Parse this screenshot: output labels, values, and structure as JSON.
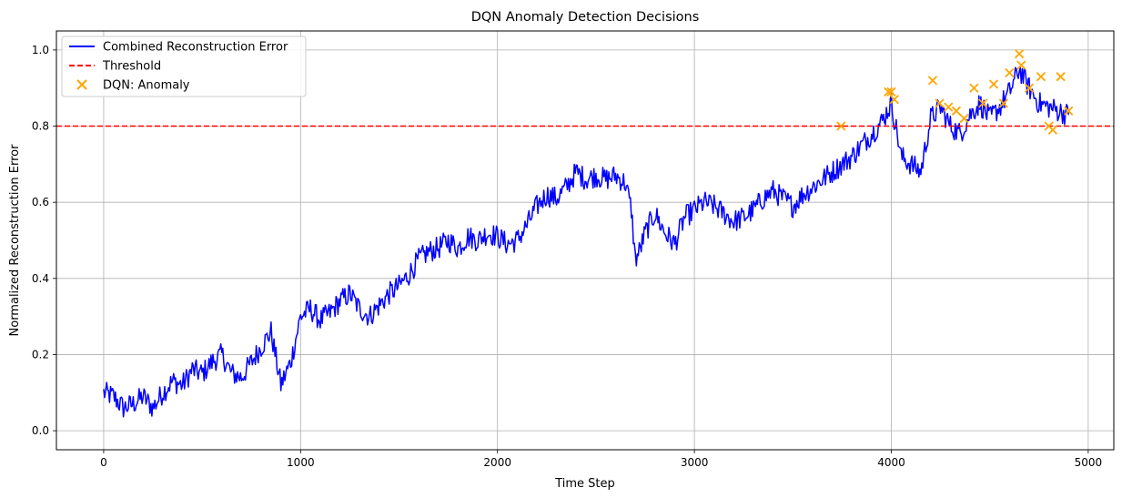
{
  "chart_data": {
    "type": "line",
    "title": "DQN Anomaly Detection Decisions",
    "xlabel": "Time Step",
    "ylabel": "Normalized Reconstruction Error",
    "xlim": [
      -240,
      5130
    ],
    "ylim": [
      -0.05,
      1.05
    ],
    "xticks": [
      0,
      1000,
      2000,
      3000,
      4000,
      5000
    ],
    "yticks": [
      0.0,
      0.2,
      0.4,
      0.6,
      0.8,
      1.0
    ],
    "xtick_labels": [
      "0",
      "1000",
      "2000",
      "3000",
      "4000",
      "5000"
    ],
    "ytick_labels": [
      "0.0",
      "0.2",
      "0.4",
      "0.6",
      "0.8",
      "1.0"
    ],
    "grid": true,
    "legend_position": "top-left",
    "threshold": 0.8,
    "series": [
      {
        "name": "Combined Reconstruction Error",
        "kind": "line",
        "color": "#0000ff",
        "x": [
          0,
          50,
          100,
          150,
          200,
          250,
          300,
          350,
          400,
          450,
          500,
          550,
          600,
          650,
          700,
          750,
          800,
          850,
          900,
          950,
          1000,
          1050,
          1100,
          1150,
          1200,
          1250,
          1300,
          1350,
          1400,
          1450,
          1500,
          1550,
          1600,
          1650,
          1700,
          1750,
          1800,
          1850,
          1900,
          1950,
          2000,
          2050,
          2100,
          2150,
          2200,
          2250,
          2300,
          2350,
          2400,
          2450,
          2500,
          2550,
          2600,
          2650,
          2680,
          2700,
          2720,
          2750,
          2800,
          2850,
          2900,
          2950,
          3000,
          3050,
          3100,
          3150,
          3200,
          3250,
          3300,
          3350,
          3400,
          3450,
          3500,
          3550,
          3600,
          3650,
          3700,
          3750,
          3800,
          3850,
          3900,
          3950,
          4000,
          4030,
          4050,
          4100,
          4150,
          4200,
          4250,
          4300,
          4350,
          4400,
          4450,
          4500,
          4550,
          4600,
          4650,
          4700,
          4750,
          4800,
          4850,
          4900
        ],
        "y": [
          0.1,
          0.09,
          0.06,
          0.07,
          0.09,
          0.06,
          0.1,
          0.13,
          0.12,
          0.16,
          0.15,
          0.18,
          0.2,
          0.15,
          0.14,
          0.18,
          0.22,
          0.26,
          0.12,
          0.18,
          0.3,
          0.32,
          0.29,
          0.31,
          0.34,
          0.36,
          0.32,
          0.3,
          0.33,
          0.36,
          0.38,
          0.41,
          0.45,
          0.47,
          0.48,
          0.5,
          0.48,
          0.51,
          0.5,
          0.52,
          0.51,
          0.49,
          0.5,
          0.54,
          0.59,
          0.62,
          0.61,
          0.64,
          0.68,
          0.66,
          0.67,
          0.66,
          0.67,
          0.65,
          0.58,
          0.45,
          0.47,
          0.52,
          0.57,
          0.52,
          0.49,
          0.56,
          0.58,
          0.6,
          0.59,
          0.57,
          0.55,
          0.56,
          0.58,
          0.61,
          0.63,
          0.61,
          0.59,
          0.62,
          0.64,
          0.66,
          0.68,
          0.7,
          0.72,
          0.75,
          0.78,
          0.81,
          0.86,
          0.78,
          0.72,
          0.7,
          0.68,
          0.82,
          0.85,
          0.8,
          0.78,
          0.83,
          0.86,
          0.82,
          0.85,
          0.89,
          0.95,
          0.9,
          0.86,
          0.85,
          0.84,
          0.83
        ],
        "noise": 0.03
      },
      {
        "name": "Threshold",
        "kind": "hline",
        "color": "#ff0000",
        "y": 0.8
      },
      {
        "name": "DQN: Anomaly",
        "kind": "scatter",
        "marker": "x",
        "color": "#ffa500",
        "x": [
          3745,
          3985,
          4000,
          4015,
          4210,
          4245,
          4290,
          4330,
          4370,
          4420,
          4465,
          4520,
          4570,
          4600,
          4650,
          4660,
          4700,
          4760,
          4800,
          4820,
          4860,
          4900
        ],
        "y": [
          0.8,
          0.89,
          0.89,
          0.87,
          0.92,
          0.86,
          0.85,
          0.84,
          0.82,
          0.9,
          0.86,
          0.91,
          0.86,
          0.94,
          0.99,
          0.96,
          0.9,
          0.93,
          0.8,
          0.79,
          0.93,
          0.84
        ]
      }
    ]
  }
}
